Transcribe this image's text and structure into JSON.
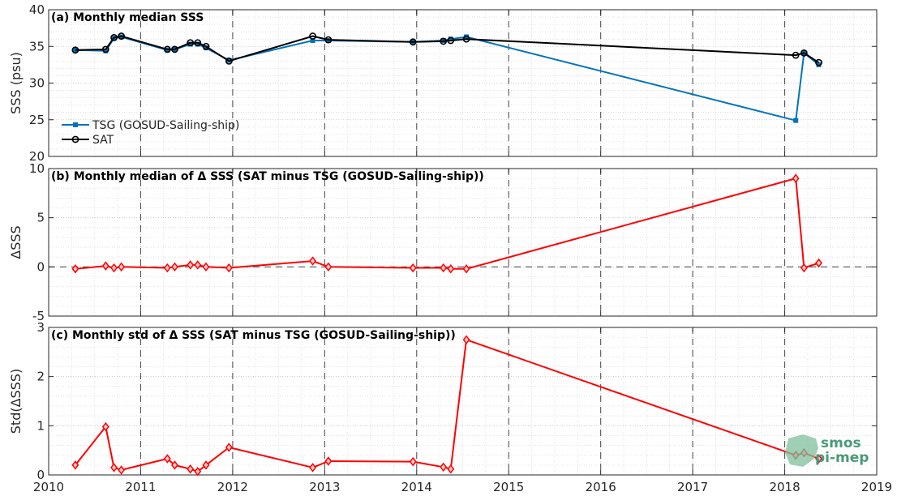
{
  "chart_data": [
    {
      "type": "line",
      "title": "(a) Monthly median SSS",
      "ylabel": "SSS (psu)",
      "xlim": [
        2010,
        2019
      ],
      "ylim": [
        20,
        40
      ],
      "yticks": [
        20,
        25,
        30,
        35,
        40
      ],
      "grid": true,
      "legend_position": "left",
      "series": [
        {
          "name": "TSG (GOSUD-Sailing-ship)",
          "color": "#0072BD",
          "marker": "filled-square",
          "x": [
            2010.29,
            2010.62,
            2010.71,
            2010.79,
            2011.29,
            2011.37,
            2011.54,
            2011.62,
            2011.71,
            2011.96,
            2012.87,
            2013.04,
            2013.96,
            2014.29,
            2014.37,
            2014.54,
            2018.12,
            2018.21,
            2018.37
          ],
          "values": [
            34.5,
            34.4,
            36.1,
            36.3,
            34.5,
            34.6,
            35.3,
            35.3,
            34.8,
            33.1,
            35.8,
            35.8,
            35.6,
            35.8,
            36.0,
            36.3,
            24.9,
            34.1,
            32.5
          ]
        },
        {
          "name": "SAT",
          "color": "#000000",
          "marker": "open-circle",
          "x": [
            2010.29,
            2010.62,
            2010.71,
            2010.79,
            2011.29,
            2011.37,
            2011.54,
            2011.62,
            2011.71,
            2011.96,
            2012.87,
            2013.04,
            2013.96,
            2014.29,
            2014.37,
            2014.54,
            2018.12,
            2018.21,
            2018.37
          ],
          "values": [
            34.5,
            34.6,
            36.2,
            36.4,
            34.6,
            34.6,
            35.5,
            35.5,
            35.0,
            33.0,
            36.4,
            35.9,
            35.6,
            35.7,
            35.8,
            36.0,
            33.8,
            34.1,
            32.8
          ]
        }
      ]
    },
    {
      "type": "line",
      "title": "(b) Monthly median of Δ SSS (SAT minus TSG (GOSUD-Sailing-ship))",
      "ylabel": "ΔSSS",
      "xlim": [
        2010,
        2019
      ],
      "ylim": [
        -5,
        10
      ],
      "yticks": [
        -5,
        0,
        5,
        10
      ],
      "grid": true,
      "reference_line": 0,
      "series": [
        {
          "color": "#FF0000",
          "marker": "diamond",
          "x": [
            2010.29,
            2010.62,
            2010.71,
            2010.79,
            2011.29,
            2011.37,
            2011.54,
            2011.62,
            2011.71,
            2011.96,
            2012.87,
            2013.04,
            2013.96,
            2014.29,
            2014.37,
            2014.54,
            2018.12,
            2018.21,
            2018.37
          ],
          "values": [
            -0.2,
            0.1,
            -0.1,
            0.0,
            -0.1,
            0.0,
            0.2,
            0.2,
            0.0,
            -0.1,
            0.6,
            0.0,
            -0.1,
            -0.1,
            -0.2,
            -0.2,
            9.0,
            -0.1,
            0.4
          ]
        }
      ]
    },
    {
      "type": "line",
      "title": "(c) Monthly std of Δ SSS (SAT minus TSG (GOSUD-Sailing-ship))",
      "ylabel": "Std(ΔSSS)",
      "xlim": [
        2010,
        2019
      ],
      "ylim": [
        0,
        3
      ],
      "yticks": [
        0,
        1,
        2,
        3
      ],
      "xticks": [
        2010,
        2011,
        2012,
        2013,
        2014,
        2015,
        2016,
        2017,
        2018,
        2019
      ],
      "grid": true,
      "series": [
        {
          "color": "#FF0000",
          "marker": "diamond",
          "x": [
            2010.29,
            2010.62,
            2010.71,
            2010.79,
            2011.29,
            2011.37,
            2011.54,
            2011.62,
            2011.71,
            2011.96,
            2012.87,
            2013.04,
            2013.96,
            2014.29,
            2014.37,
            2014.54,
            2018.12,
            2018.21,
            2018.37
          ],
          "values": [
            0.2,
            0.98,
            0.15,
            0.1,
            0.33,
            0.2,
            0.12,
            0.07,
            0.2,
            0.56,
            0.15,
            0.28,
            0.27,
            0.16,
            0.12,
            2.75,
            0.4,
            0.45,
            0.33
          ]
        }
      ]
    }
  ],
  "logo": {
    "line1": "smos",
    "line2": "pi-mep"
  }
}
